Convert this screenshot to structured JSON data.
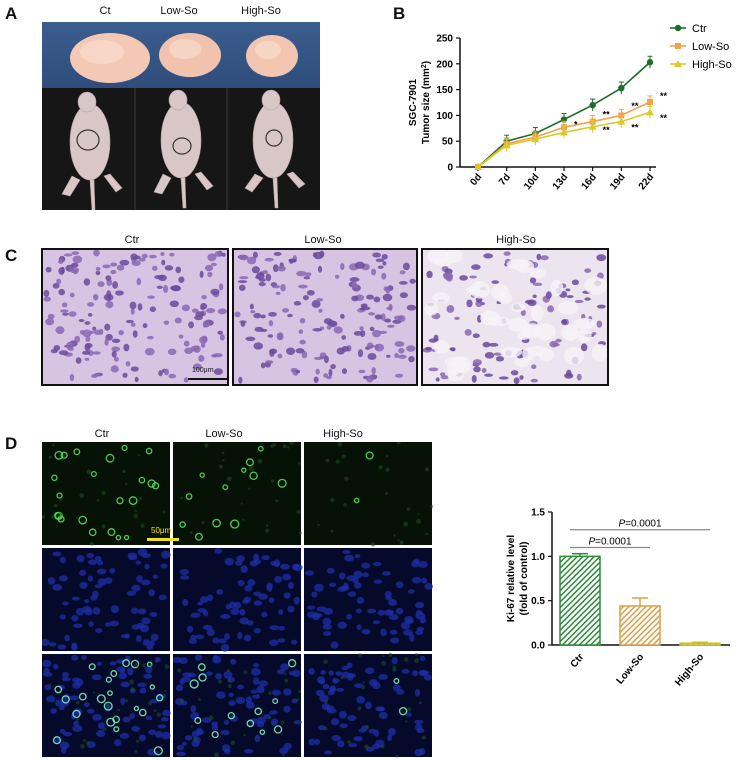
{
  "panels": {
    "a": "A",
    "b": "B",
    "c": "C",
    "d": "D"
  },
  "panel_a": {
    "labels": [
      "Ct",
      "Low-So",
      "High-So"
    ]
  },
  "panel_c": {
    "labels": [
      "Ctr",
      "Low-So",
      "High-So"
    ],
    "scale_bar": "100μm"
  },
  "panel_d": {
    "labels": [
      "Ctr",
      "Low-So",
      "High-So"
    ],
    "scale_bar": "50μm"
  },
  "colors": {
    "ctr": "#1f6b2a",
    "low": "#f5a04a",
    "high": "#d8cc2a",
    "bar_ctr": "#2e8b3c",
    "bar_low": "#d9a04a",
    "bar_high": "#c8c020"
  },
  "chart_data": [
    {
      "type": "line",
      "ylabel_line1": "SGC-7901",
      "ylabel_line2": "Tumor size (mm",
      "ylabel_sup": "2",
      "ylabel_end": ")",
      "categories": [
        "0d",
        "7d",
        "10d",
        "13d",
        "16d",
        "19d",
        "22d"
      ],
      "ylim": [
        0,
        250
      ],
      "yticks": [
        "0",
        "50",
        "100",
        "150",
        "200",
        "250"
      ],
      "legend_position": "top-right",
      "series": [
        {
          "name": "Ctr",
          "values": [
            0,
            50,
            65,
            92,
            120,
            153,
            203
          ]
        },
        {
          "name": "Low-So",
          "values": [
            0,
            45,
            58,
            77,
            88,
            100,
            126
          ]
        },
        {
          "name": "High-So",
          "values": [
            0,
            42,
            54,
            67,
            78,
            88,
            106
          ]
        }
      ],
      "annotations": [
        {
          "text": "*",
          "x": "13d",
          "y": 82
        },
        {
          "text": "**",
          "x": "16d",
          "y": 102
        },
        {
          "text": "**",
          "x": "16d",
          "y": 72
        },
        {
          "text": "**",
          "x": "19d",
          "y": 118
        },
        {
          "text": "**",
          "x": "19d",
          "y": 77
        },
        {
          "text": "**",
          "x": "22d",
          "y": 138
        },
        {
          "text": "**",
          "x": "22d",
          "y": 95
        }
      ]
    },
    {
      "type": "bar",
      "ylabel_line1": "Ki-67 relative level",
      "ylabel_line2": "(fold of control)",
      "categories": [
        "Ctr",
        "Low-So",
        "High-So"
      ],
      "values": [
        1.0,
        0.44,
        0.02
      ],
      "errors": [
        0.03,
        0.09,
        0.01
      ],
      "ylim": [
        0,
        1.5
      ],
      "yticks": [
        "0.0",
        "0.5",
        "1.0",
        "1.5"
      ],
      "annotations": [
        {
          "text_italic": "P",
          "text": "=0.0001",
          "from": "Ctr",
          "to": "Low-So"
        },
        {
          "text_italic": "P",
          "text": "=0.0001",
          "from": "Ctr",
          "to": "High-So"
        }
      ]
    }
  ]
}
